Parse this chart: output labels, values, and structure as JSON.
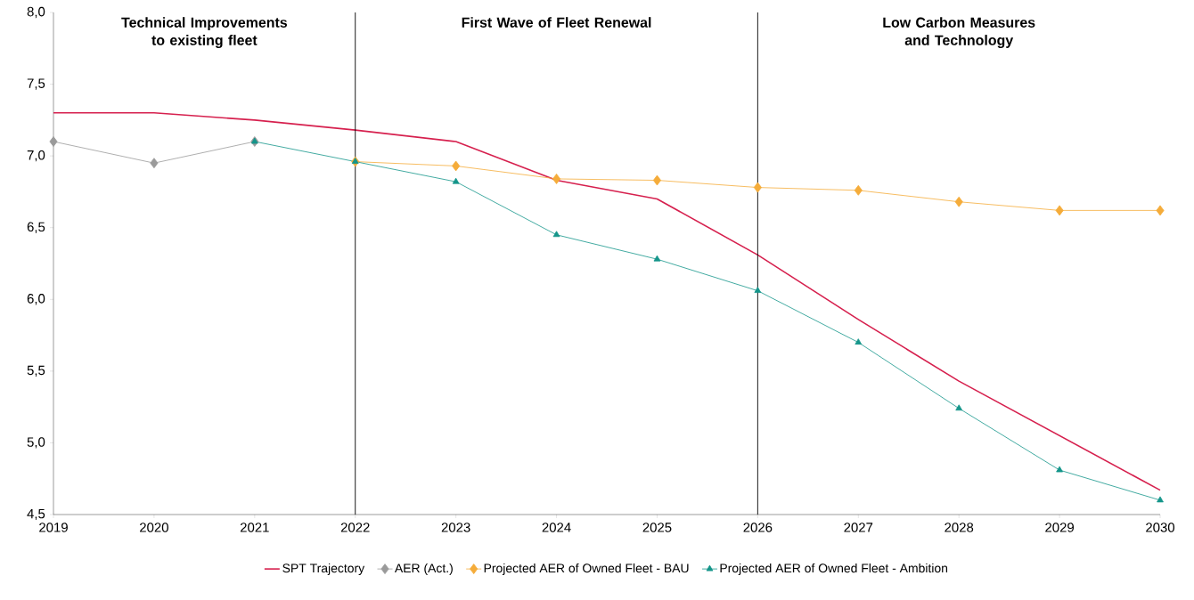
{
  "chart_data": {
    "type": "line",
    "x": [
      2019,
      2020,
      2021,
      2022,
      2023,
      2024,
      2025,
      2026,
      2027,
      2028,
      2029,
      2030
    ],
    "series": [
      {
        "name": "SPT Trajectory",
        "color": "#d6204e",
        "marker": "none",
        "values": [
          7.3,
          7.3,
          7.25,
          7.18,
          7.1,
          6.83,
          6.7,
          6.31,
          5.86,
          5.43,
          5.05,
          4.67
        ]
      },
      {
        "name": "AER (Act.)",
        "color": "#9a9a9a",
        "marker": "diamond",
        "values": [
          7.1,
          6.95,
          7.1,
          null,
          null,
          null,
          null,
          null,
          null,
          null,
          null,
          null
        ]
      },
      {
        "name": "Projected AER of Owned Fleet - BAU",
        "color": "#f5ac3a",
        "marker": "diamond",
        "values": [
          null,
          null,
          null,
          6.96,
          6.93,
          6.84,
          6.83,
          6.78,
          6.76,
          6.68,
          6.62,
          6.62
        ]
      },
      {
        "name": "Projected AER of Owned Fleet - Ambition",
        "color": "#14958a",
        "marker": "triangle",
        "values": [
          null,
          null,
          7.1,
          6.96,
          6.82,
          6.45,
          6.28,
          6.06,
          5.7,
          5.24,
          4.81,
          4.6
        ]
      }
    ],
    "xlim": [
      2019,
      2030
    ],
    "xticks": [
      2019,
      2020,
      2021,
      2022,
      2023,
      2024,
      2025,
      2026,
      2027,
      2028,
      2029,
      2030
    ],
    "ylim": [
      4.5,
      8.0
    ],
    "yticks": [
      {
        "value": 4.5,
        "label": "4,5"
      },
      {
        "value": 5.0,
        "label": "5,0"
      },
      {
        "value": 5.5,
        "label": "5,5"
      },
      {
        "value": 6.0,
        "label": "6,0"
      },
      {
        "value": 6.5,
        "label": "6,5"
      },
      {
        "value": 7.0,
        "label": "7,0"
      },
      {
        "value": 7.5,
        "label": "7,5"
      },
      {
        "value": 8.0,
        "label": "8,0"
      }
    ],
    "ref_lines": [
      {
        "axis": "x",
        "value": 2022,
        "color": "#000000"
      },
      {
        "axis": "x",
        "value": 2026,
        "color": "#000000"
      }
    ],
    "annotations": [
      "Technical Improvements to existing fleet",
      "First Wave of Fleet Renewal",
      "Low Carbon Measures and Technology"
    ],
    "grid": false,
    "legend": "bottom",
    "line_style": "solid"
  }
}
